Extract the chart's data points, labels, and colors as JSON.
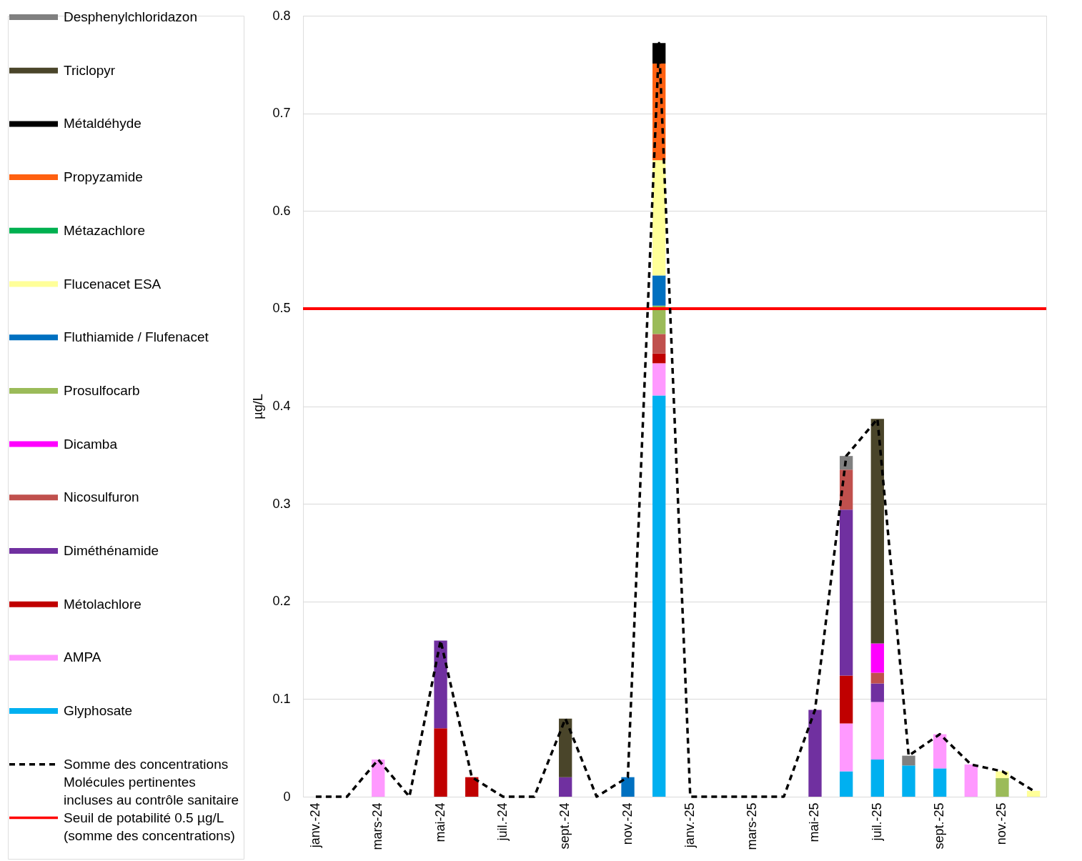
{
  "chart_data": {
    "type": "bar",
    "stacked": true,
    "ylabel": "µg/L",
    "categories": [
      "janv.-24",
      null,
      "mars-24",
      null,
      "mai-24",
      null,
      "juil.-24",
      null,
      "sept.-24",
      null,
      "nov.-24",
      null,
      "janv.-25",
      null,
      "mars-25",
      null,
      "mai-25",
      null,
      "juil.-25",
      null,
      "sept.-25",
      null,
      "nov.-25",
      null
    ],
    "ylim": [
      0,
      0.8
    ],
    "yticks": [
      0,
      0.1,
      0.2,
      0.3,
      0.4,
      0.5,
      0.6,
      0.7,
      0.8
    ],
    "grid": "y",
    "legend": "left",
    "series": [
      {
        "name": "Glyphosate",
        "color": "#00b0f0",
        "values": [
          null,
          null,
          null,
          null,
          null,
          null,
          null,
          null,
          null,
          null,
          null,
          0.411,
          null,
          null,
          null,
          null,
          null,
          0.026,
          0.038,
          0.032,
          0.029,
          null,
          null,
          null
        ]
      },
      {
        "name": "AMPA",
        "color": "#ff99ff",
        "values": [
          null,
          null,
          0.038,
          null,
          null,
          null,
          null,
          null,
          null,
          null,
          null,
          0.033,
          null,
          null,
          null,
          null,
          null,
          0.049,
          0.059,
          null,
          0.035,
          0.033,
          null,
          null
        ]
      },
      {
        "name": "Métolachlore",
        "color": "#c00000",
        "values": [
          null,
          null,
          null,
          null,
          0.07,
          0.02,
          null,
          null,
          null,
          null,
          null,
          0.01,
          null,
          null,
          null,
          null,
          null,
          0.049,
          null,
          null,
          null,
          null,
          null,
          null
        ]
      },
      {
        "name": "Diméthénamide",
        "color": "#7030a0",
        "values": [
          null,
          null,
          null,
          null,
          0.09,
          null,
          null,
          null,
          0.02,
          null,
          null,
          null,
          null,
          null,
          null,
          null,
          0.089,
          0.17,
          0.019,
          null,
          null,
          null,
          null,
          null
        ]
      },
      {
        "name": "Nicosulfuron",
        "color": "#c0504d",
        "values": [
          null,
          null,
          null,
          null,
          null,
          null,
          null,
          null,
          null,
          null,
          null,
          0.02,
          null,
          null,
          null,
          null,
          null,
          0.041,
          0.011,
          null,
          null,
          null,
          null,
          null
        ]
      },
      {
        "name": "Dicamba",
        "color": "#ff00ff",
        "values": [
          null,
          null,
          null,
          null,
          null,
          null,
          null,
          null,
          null,
          null,
          null,
          null,
          null,
          null,
          null,
          null,
          null,
          null,
          0.03,
          null,
          null,
          null,
          null,
          null
        ]
      },
      {
        "name": "Prosulfocarb",
        "color": "#9bbb59",
        "values": [
          null,
          null,
          null,
          null,
          null,
          null,
          null,
          null,
          null,
          null,
          null,
          0.029,
          null,
          null,
          null,
          null,
          null,
          null,
          null,
          null,
          null,
          null,
          0.019,
          null
        ]
      },
      {
        "name": "Fluthiamide / Flufenacet",
        "color": "#0070c0",
        "values": [
          null,
          null,
          null,
          null,
          null,
          null,
          null,
          null,
          null,
          null,
          0.02,
          0.031,
          null,
          null,
          null,
          null,
          null,
          null,
          null,
          null,
          null,
          null,
          null,
          null
        ]
      },
      {
        "name": "Flucenacet ESA",
        "color": "#ffff99",
        "values": [
          null,
          null,
          null,
          null,
          null,
          null,
          null,
          null,
          null,
          null,
          null,
          0.118,
          null,
          null,
          null,
          null,
          null,
          null,
          null,
          null,
          null,
          null,
          0.007,
          0.006
        ]
      },
      {
        "name": "Métazachlore",
        "color": "#00b050",
        "values": [
          null,
          null,
          null,
          null,
          null,
          null,
          null,
          null,
          null,
          null,
          null,
          null,
          null,
          null,
          null,
          null,
          null,
          null,
          null,
          null,
          null,
          null,
          null,
          null
        ]
      },
      {
        "name": "Propyzamide",
        "color": "#ff6010",
        "values": [
          null,
          null,
          null,
          null,
          null,
          null,
          null,
          null,
          null,
          null,
          null,
          0.099,
          null,
          null,
          null,
          null,
          null,
          null,
          null,
          null,
          null,
          null,
          null,
          null
        ]
      },
      {
        "name": "Métaldéhyde",
        "color": "#000000",
        "values": [
          null,
          null,
          null,
          null,
          null,
          null,
          null,
          null,
          null,
          null,
          null,
          0.021,
          null,
          null,
          null,
          null,
          null,
          null,
          null,
          null,
          null,
          null,
          null,
          null
        ]
      },
      {
        "name": "Triclopyr",
        "color": "#4a452a",
        "values": [
          null,
          null,
          null,
          null,
          null,
          null,
          null,
          null,
          0.06,
          null,
          null,
          null,
          null,
          null,
          null,
          null,
          null,
          null,
          0.23,
          null,
          null,
          null,
          null,
          null
        ]
      },
      {
        "name": "Desphenylchloridazon",
        "color": "#808080",
        "values": [
          null,
          null,
          null,
          null,
          null,
          null,
          null,
          null,
          null,
          null,
          null,
          null,
          null,
          null,
          null,
          null,
          null,
          0.014,
          null,
          0.01,
          null,
          null,
          null,
          null
        ]
      },
      {
        "name": "Somme des concentrations\nMolécules pertinentes\nincluses au contrôle sanitaire",
        "type": "line",
        "line_style": "dashed",
        "color": "#000000",
        "values": [
          0,
          0,
          0.038,
          0,
          0.16,
          0.02,
          0,
          0,
          0.08,
          0,
          0.02,
          0.772,
          0,
          0,
          0,
          0,
          0.089,
          0.349,
          0.387,
          0.042,
          0.064,
          0.033,
          0.026,
          0.006
        ]
      }
    ],
    "ref_lines": [
      {
        "axis": "y",
        "value": 0.5,
        "label": "Seuil de potabilité 0.5 µg/L\n(somme des concentrations)",
        "color": "#ff0000"
      }
    ]
  }
}
